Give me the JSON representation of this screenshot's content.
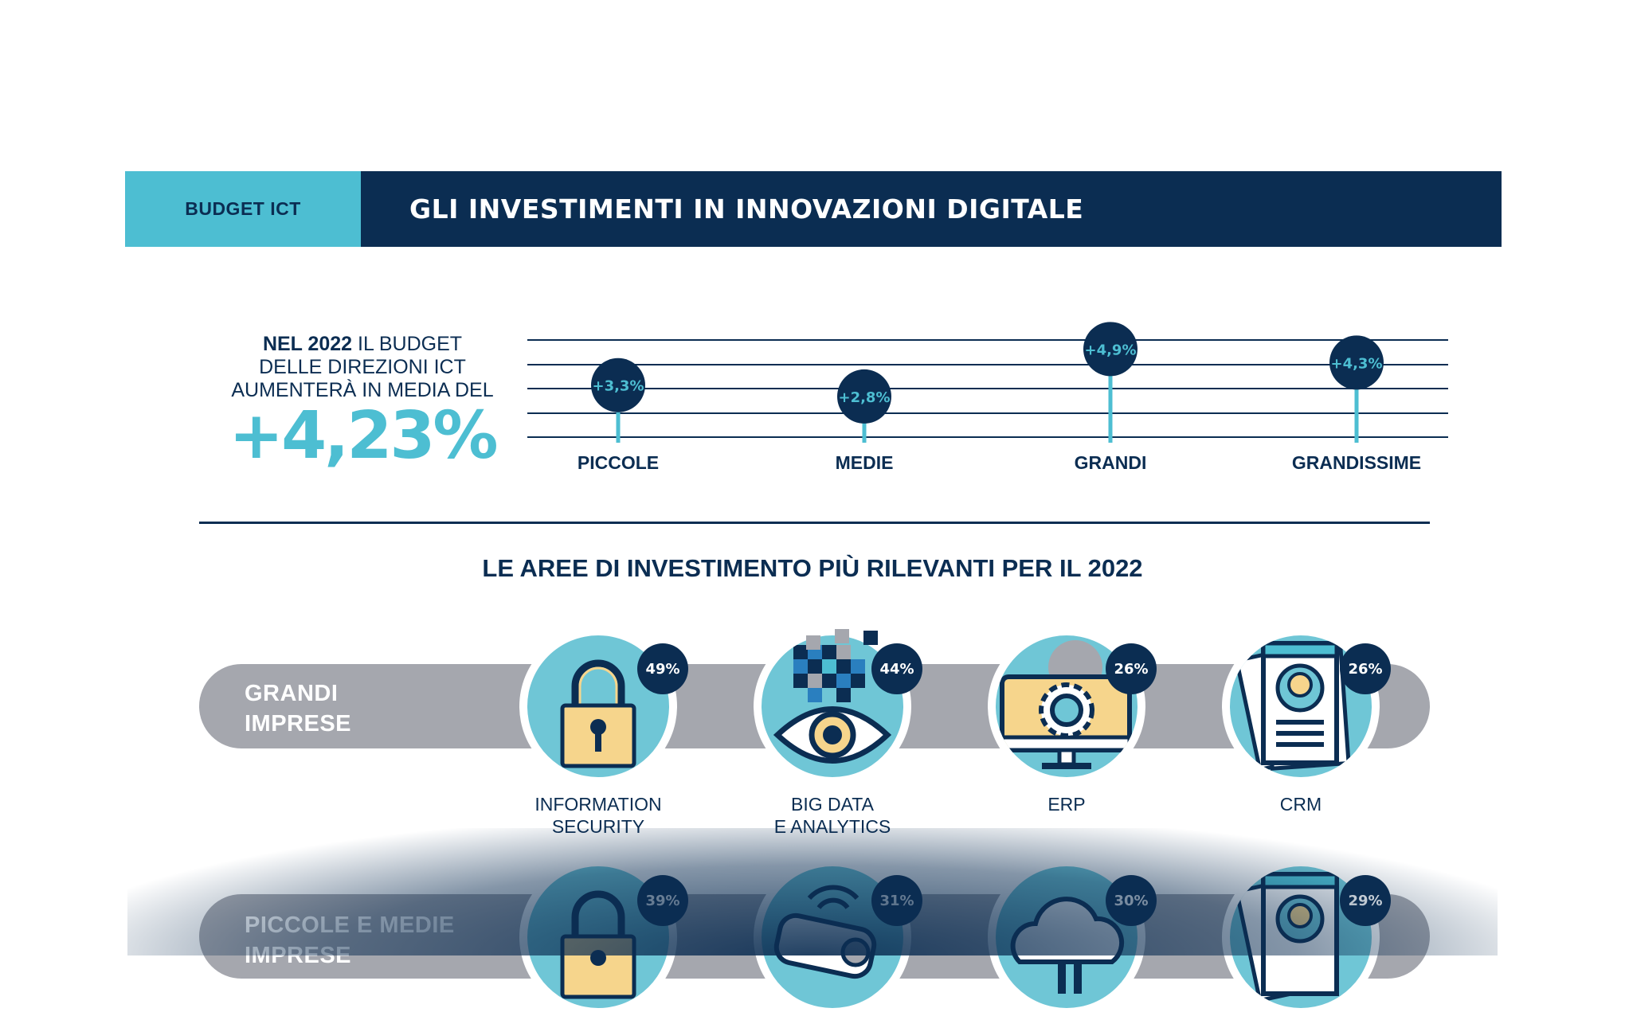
{
  "header": {
    "category": "BUDGET ICT",
    "title": "GLI INVESTIMENTI IN INNOVAZIONI DIGITALE"
  },
  "intro": {
    "bold_part": "NEL 2022",
    "line1_rest": " IL BUDGET",
    "line2": "DELLE DIREZIONI ICT",
    "line3": "AUMENTERÀ IN MEDIA DEL",
    "big_value": "+4,23%"
  },
  "chart_data": {
    "type": "lollipop",
    "categories": [
      "PICCOLE",
      "MEDIE",
      "GRANDI",
      "GRANDISSIME"
    ],
    "values": [
      3.3,
      2.8,
      4.9,
      4.3
    ],
    "labels": [
      "+3,3%",
      "+2,8%",
      "+4,9%",
      "+4,3%"
    ],
    "colors": {
      "line": "#0b2d52",
      "stem": "#4dbed2",
      "dot": "#0b2d52",
      "label": "#4dbed2"
    }
  },
  "section": {
    "title": "LE AREE DI INVESTIMENTO PIÙ RILEVANTI PER IL 2022"
  },
  "rows": [
    {
      "label_line1": "GRANDI",
      "label_line2": "IMPRESE",
      "items": [
        {
          "icon": "padlock-icon",
          "pct": "49%",
          "caption_line1": "INFORMATION",
          "caption_line2": "SECURITY"
        },
        {
          "icon": "eye-pixels-icon",
          "pct": "44%",
          "caption_line1": "BIG DATA",
          "caption_line2": "E ANALYTICS"
        },
        {
          "icon": "monitor-gear-icon",
          "pct": "26%",
          "caption_line1": "ERP",
          "caption_line2": ""
        },
        {
          "icon": "contact-card-icon",
          "pct": "26%",
          "caption_line1": "CRM",
          "caption_line2": ""
        }
      ]
    },
    {
      "label_line1_a": "PICCOLE",
      "label_line1_b": " E ",
      "label_line1_c": "MEDIE",
      "label_line2": "IMPRESE",
      "items": [
        {
          "icon": "padlock-icon",
          "pct": "39%"
        },
        {
          "icon": "camera-wifi-icon",
          "pct": "31%"
        },
        {
          "icon": "cloud-icon",
          "pct": "30%"
        },
        {
          "icon": "contact-card-icon",
          "pct": "29%"
        }
      ]
    }
  ],
  "colors": {
    "navy": "#0b2d52",
    "cyan": "#4dbed2",
    "gray": "#a5a7ae",
    "icon_bg": "#6fc6d6",
    "icon_yellow": "#f6d58c"
  }
}
